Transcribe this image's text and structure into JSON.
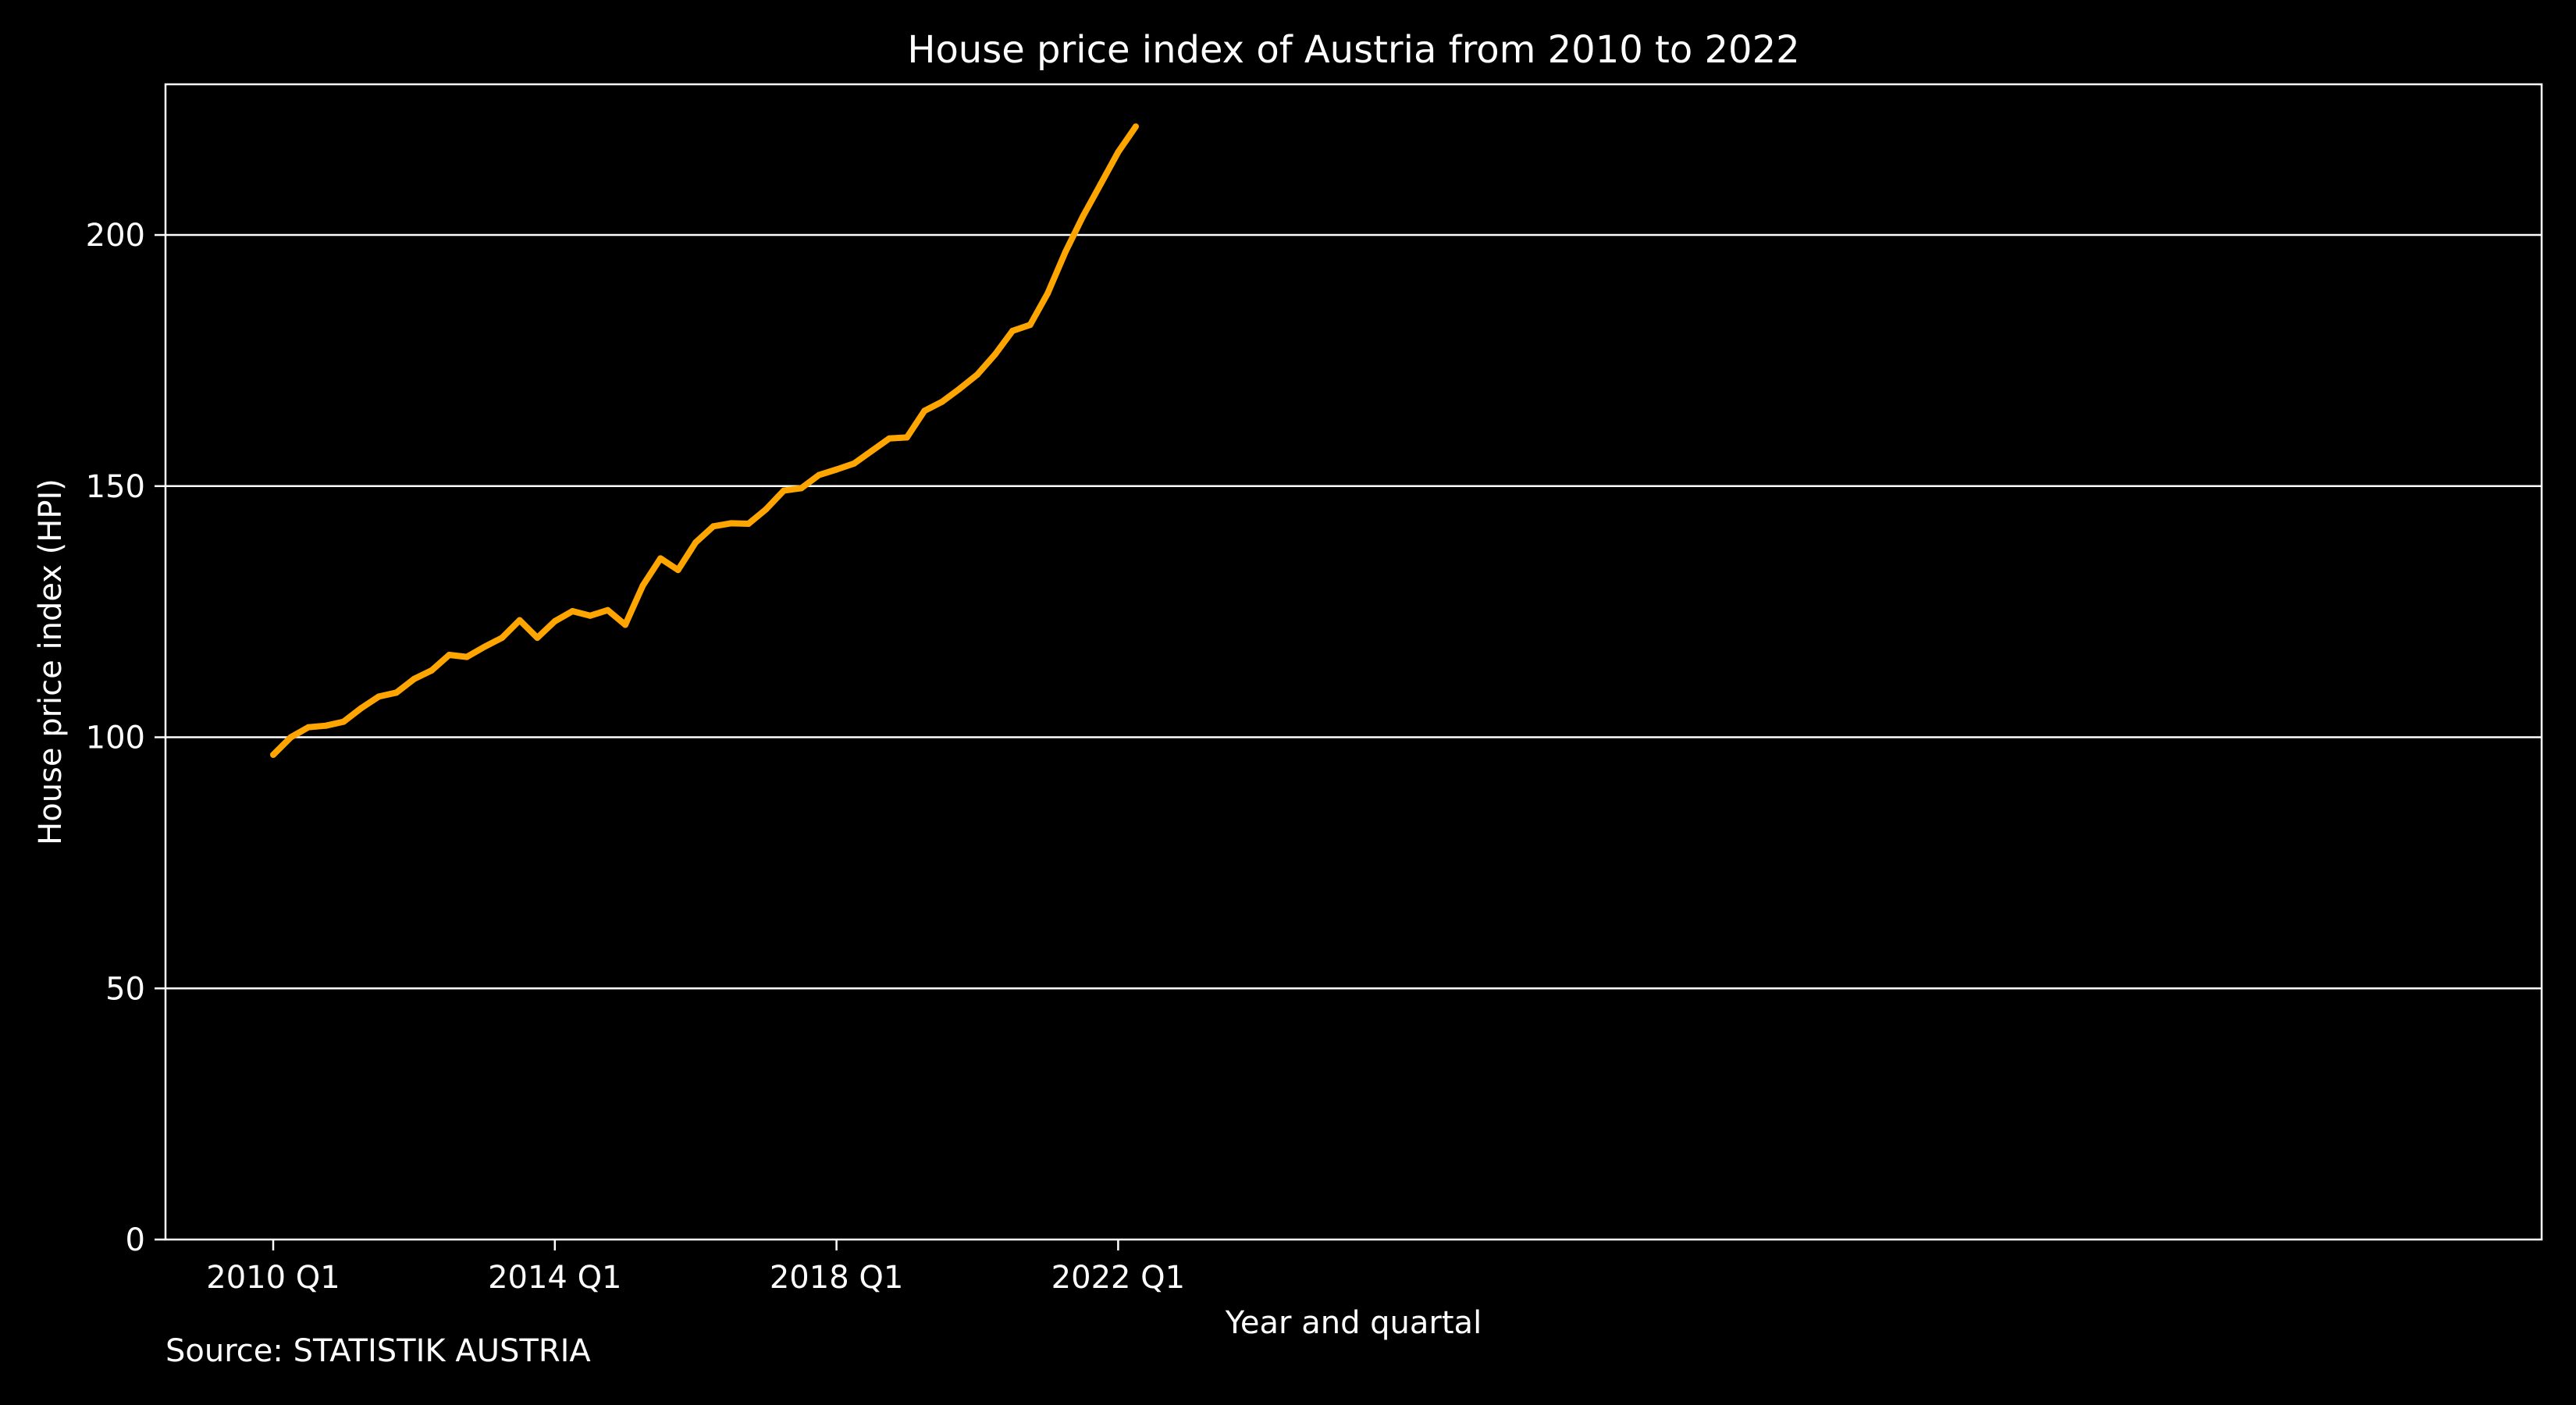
{
  "chart_data": {
    "type": "line",
    "title": "House price index of Austria from 2010 to 2022",
    "xlabel": "Year and quartal",
    "ylabel": "House price index (HPI)",
    "source": "Source: STATISTIK AUSTRIA",
    "x": [
      "2010 Q1",
      "2010 Q2",
      "2010 Q3",
      "2010 Q4",
      "2011 Q1",
      "2011 Q2",
      "2011 Q3",
      "2011 Q4",
      "2012 Q1",
      "2012 Q2",
      "2012 Q3",
      "2012 Q4",
      "2013 Q1",
      "2013 Q2",
      "2013 Q3",
      "2013 Q4",
      "2014 Q1",
      "2014 Q2",
      "2014 Q3",
      "2014 Q4",
      "2015 Q1",
      "2015 Q2",
      "2015 Q3",
      "2015 Q4",
      "2016 Q1",
      "2016 Q2",
      "2016 Q3",
      "2016 Q4",
      "2017 Q1",
      "2017 Q2",
      "2017 Q3",
      "2017 Q4",
      "2018 Q1",
      "2018 Q2",
      "2018 Q3",
      "2018 Q4",
      "2019 Q1",
      "2019 Q2",
      "2019 Q3",
      "2019 Q4",
      "2020 Q1",
      "2020 Q2",
      "2020 Q3",
      "2020 Q4",
      "2021 Q1",
      "2021 Q2",
      "2021 Q3",
      "2021 Q4",
      "2022 Q1",
      "2022 Q2"
    ],
    "series": [
      {
        "values": [
          96.5,
          100.0,
          102.0,
          102.3,
          103.1,
          105.8,
          108.1,
          108.9,
          111.6,
          113.3,
          116.4,
          116.0,
          118.0,
          119.8,
          123.3,
          119.8,
          123.1,
          125.1,
          124.2,
          125.3,
          122.4,
          130.2,
          135.6,
          133.3,
          138.8,
          142.0,
          142.6,
          142.5,
          145.4,
          149.1,
          149.6,
          152.2,
          153.3,
          154.5,
          157.0,
          159.5,
          159.7,
          165.0,
          166.8,
          169.4,
          172.2,
          176.2,
          180.9,
          182.1,
          188.4,
          196.6,
          203.7,
          210.1,
          216.5,
          221.6
        ],
        "color": "#ffa500"
      }
    ],
    "xticks": [
      "2010 Q1",
      "2014 Q1",
      "2018 Q1",
      "2022 Q1"
    ],
    "yticks": [
      0,
      50,
      100,
      150,
      200
    ],
    "ylim": [
      0,
      230
    ],
    "grid": "horizontal",
    "colors": {
      "background": "#000000",
      "foreground": "#ffffff",
      "line": "#ffa500"
    }
  }
}
